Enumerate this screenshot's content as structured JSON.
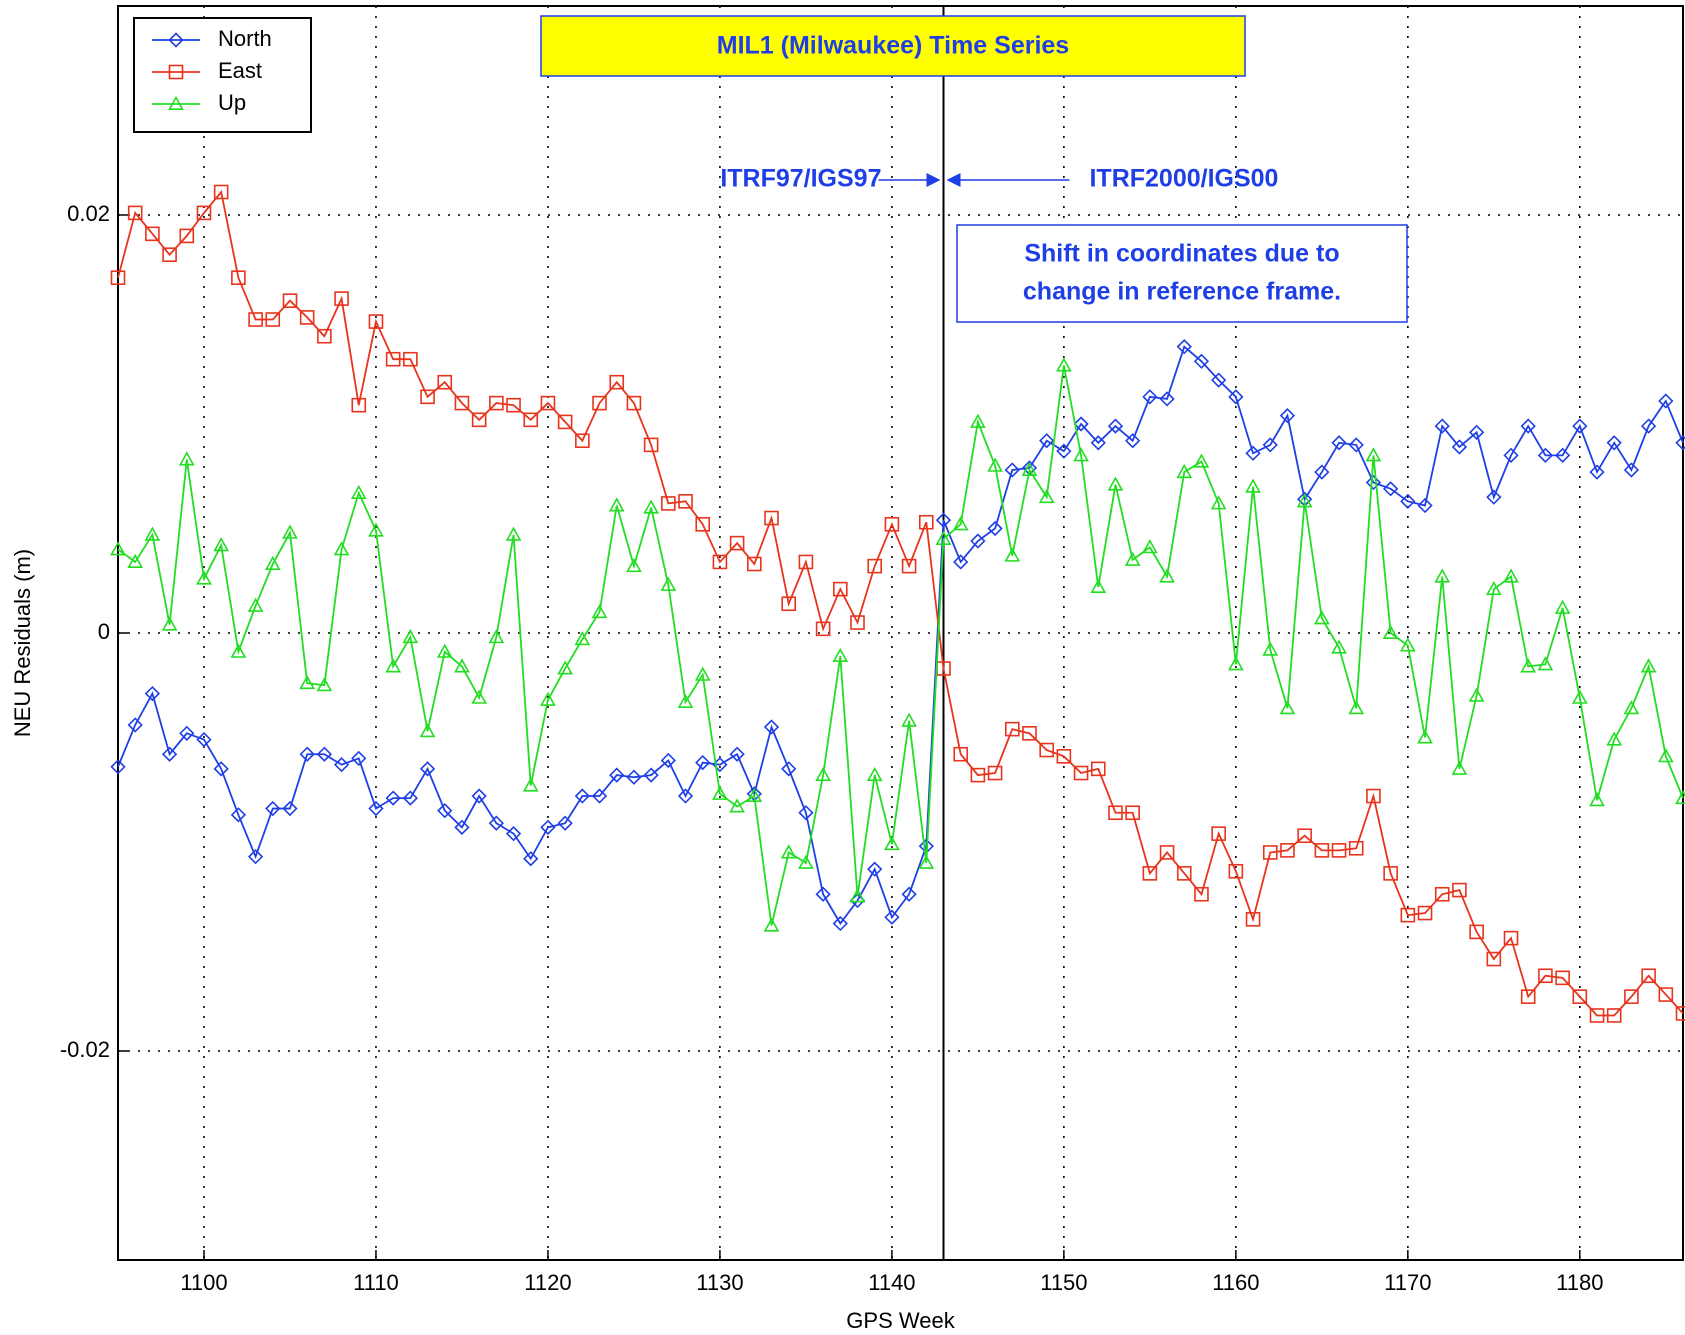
{
  "chart_data": {
    "type": "line",
    "title": "MIL1 (Milwaukee) Time Series",
    "x_label": "GPS Week",
    "y_label": "NEU Residuals (m)",
    "x": [
      1095,
      1096,
      1097,
      1098,
      1099,
      1100,
      1101,
      1102,
      1103,
      1104,
      1105,
      1106,
      1107,
      1108,
      1109,
      1110,
      1111,
      1112,
      1113,
      1114,
      1115,
      1116,
      1117,
      1118,
      1119,
      1120,
      1121,
      1122,
      1123,
      1124,
      1125,
      1126,
      1127,
      1128,
      1129,
      1130,
      1131,
      1132,
      1133,
      1134,
      1135,
      1136,
      1137,
      1138,
      1139,
      1140,
      1141,
      1142,
      1143,
      1144,
      1145,
      1146,
      1147,
      1148,
      1149,
      1150,
      1151,
      1152,
      1153,
      1154,
      1155,
      1156,
      1157,
      1158,
      1159,
      1160,
      1161,
      1162,
      1163,
      1164,
      1165,
      1166,
      1167,
      1168,
      1169,
      1170,
      1171,
      1172,
      1173,
      1174,
      1175,
      1176,
      1177,
      1178,
      1179,
      1180,
      1181,
      1182,
      1183,
      1184,
      1185,
      1186
    ],
    "series": [
      {
        "name": "North",
        "color": "#1f3fe6",
        "marker": "diamond",
        "values": [
          -0.0064,
          -0.0044,
          -0.0029,
          -0.0058,
          -0.0048,
          -0.0051,
          -0.0065,
          -0.0087,
          -0.0107,
          -0.0084,
          -0.0084,
          -0.0058,
          -0.0058,
          -0.0063,
          -0.006,
          -0.0084,
          -0.0079,
          -0.0079,
          -0.0065,
          -0.0085,
          -0.0093,
          -0.0078,
          -0.0091,
          -0.0096,
          -0.0108,
          -0.0093,
          -0.0091,
          -0.0078,
          -0.0078,
          -0.0068,
          -0.0069,
          -0.0068,
          -0.0061,
          -0.0078,
          -0.0062,
          -0.0063,
          -0.0058,
          -0.0077,
          -0.0045,
          -0.0065,
          -0.0086,
          -0.0125,
          -0.0139,
          -0.0128,
          -0.0113,
          -0.0136,
          -0.0125,
          -0.0102,
          0.0054,
          0.0034,
          0.0044,
          0.005,
          0.0078,
          0.0079,
          0.0092,
          0.0087,
          0.01,
          0.0091,
          0.0099,
          0.0092,
          0.0113,
          0.0112,
          0.0137,
          0.013,
          0.0121,
          0.0113,
          0.0086,
          0.009,
          0.0104,
          0.0064,
          0.0077,
          0.0091,
          0.009,
          0.0072,
          0.0069,
          0.0063,
          0.0061,
          0.0099,
          0.0089,
          0.0096,
          0.0065,
          0.0085,
          0.0099,
          0.0085,
          0.0085,
          0.0099,
          0.0077,
          0.0091,
          0.0078,
          0.0099,
          0.0111,
          0.0091
        ]
      },
      {
        "name": "East",
        "color": "#e8341c",
        "marker": "square",
        "values": [
          0.017,
          0.0201,
          0.0191,
          0.0181,
          0.019,
          0.0201,
          0.0211,
          0.017,
          0.015,
          0.015,
          0.0159,
          0.0151,
          0.0142,
          0.016,
          0.0109,
          0.0149,
          0.0131,
          0.0131,
          0.0113,
          0.012,
          0.011,
          0.0102,
          0.011,
          0.0109,
          0.0102,
          0.011,
          0.0101,
          0.0092,
          0.011,
          0.012,
          0.011,
          0.009,
          0.0062,
          0.0063,
          0.0052,
          0.0034,
          0.0043,
          0.0033,
          0.0055,
          0.0014,
          0.0034,
          0.0002,
          0.0021,
          0.0005,
          0.0032,
          0.0052,
          0.0032,
          0.0053,
          -0.0017,
          -0.0058,
          -0.0068,
          -0.0067,
          -0.0046,
          -0.0048,
          -0.0056,
          -0.0059,
          -0.0067,
          -0.0065,
          -0.0086,
          -0.0086,
          -0.0115,
          -0.0105,
          -0.0115,
          -0.0125,
          -0.0096,
          -0.0114,
          -0.0137,
          -0.0105,
          -0.0104,
          -0.0097,
          -0.0104,
          -0.0104,
          -0.0103,
          -0.0078,
          -0.0115,
          -0.0135,
          -0.0134,
          -0.0125,
          -0.0123,
          -0.0143,
          -0.0156,
          -0.0146,
          -0.0174,
          -0.0164,
          -0.0165,
          -0.0174,
          -0.0183,
          -0.0183,
          -0.0174,
          -0.0164,
          -0.0173,
          -0.0182
        ]
      },
      {
        "name": "Up",
        "color": "#22dd22",
        "marker": "triangle",
        "values": [
          0.004,
          0.0034,
          0.0047,
          0.0004,
          0.0083,
          0.0026,
          0.0042,
          -0.0009,
          0.0013,
          0.0033,
          0.0048,
          -0.0024,
          -0.0025,
          0.004,
          0.0067,
          0.0049,
          -0.0016,
          -0.0002,
          -0.0047,
          -0.0009,
          -0.0016,
          -0.0031,
          -0.0002,
          0.0047,
          -0.0073,
          -0.0032,
          -0.0017,
          -0.0003,
          0.001,
          0.0061,
          0.0032,
          0.006,
          0.0023,
          -0.0033,
          -0.002,
          -0.0077,
          -0.0083,
          -0.0078,
          -0.014,
          -0.0105,
          -0.011,
          -0.0068,
          -0.0011,
          -0.0126,
          -0.0068,
          -0.0101,
          -0.0042,
          -0.011,
          0.0045,
          0.0052,
          0.0101,
          0.008,
          0.0037,
          0.0078,
          0.0065,
          0.0128,
          0.0085,
          0.0022,
          0.0071,
          0.0035,
          0.0041,
          0.0027,
          0.0077,
          0.0082,
          0.0062,
          -0.0015,
          0.007,
          -0.0008,
          -0.0036,
          0.0063,
          0.0007,
          -0.0007,
          -0.0036,
          0.0085,
          0.0,
          -0.0006,
          -0.005,
          0.0027,
          -0.0065,
          -0.003,
          0.0021,
          0.0027,
          -0.0016,
          -0.0015,
          0.0012,
          -0.0031,
          -0.008,
          -0.0051,
          -0.0036,
          -0.0016,
          -0.0059,
          -0.0079
        ]
      }
    ],
    "xlim": [
      1095,
      1186
    ],
    "ylim": [
      -0.03,
      0.03
    ],
    "xticks": [
      1100,
      1110,
      1120,
      1130,
      1140,
      1150,
      1160,
      1170,
      1180
    ],
    "yticks": [
      -0.02,
      0,
      0.02
    ],
    "grid": true,
    "legend": "upper left",
    "reference_line_x": 1143,
    "annotations": {
      "before": "ITRF97/IGS97",
      "after": "ITRF2000/IGS00",
      "note": [
        "Shift in coordinates due to",
        "change in reference frame."
      ]
    }
  }
}
